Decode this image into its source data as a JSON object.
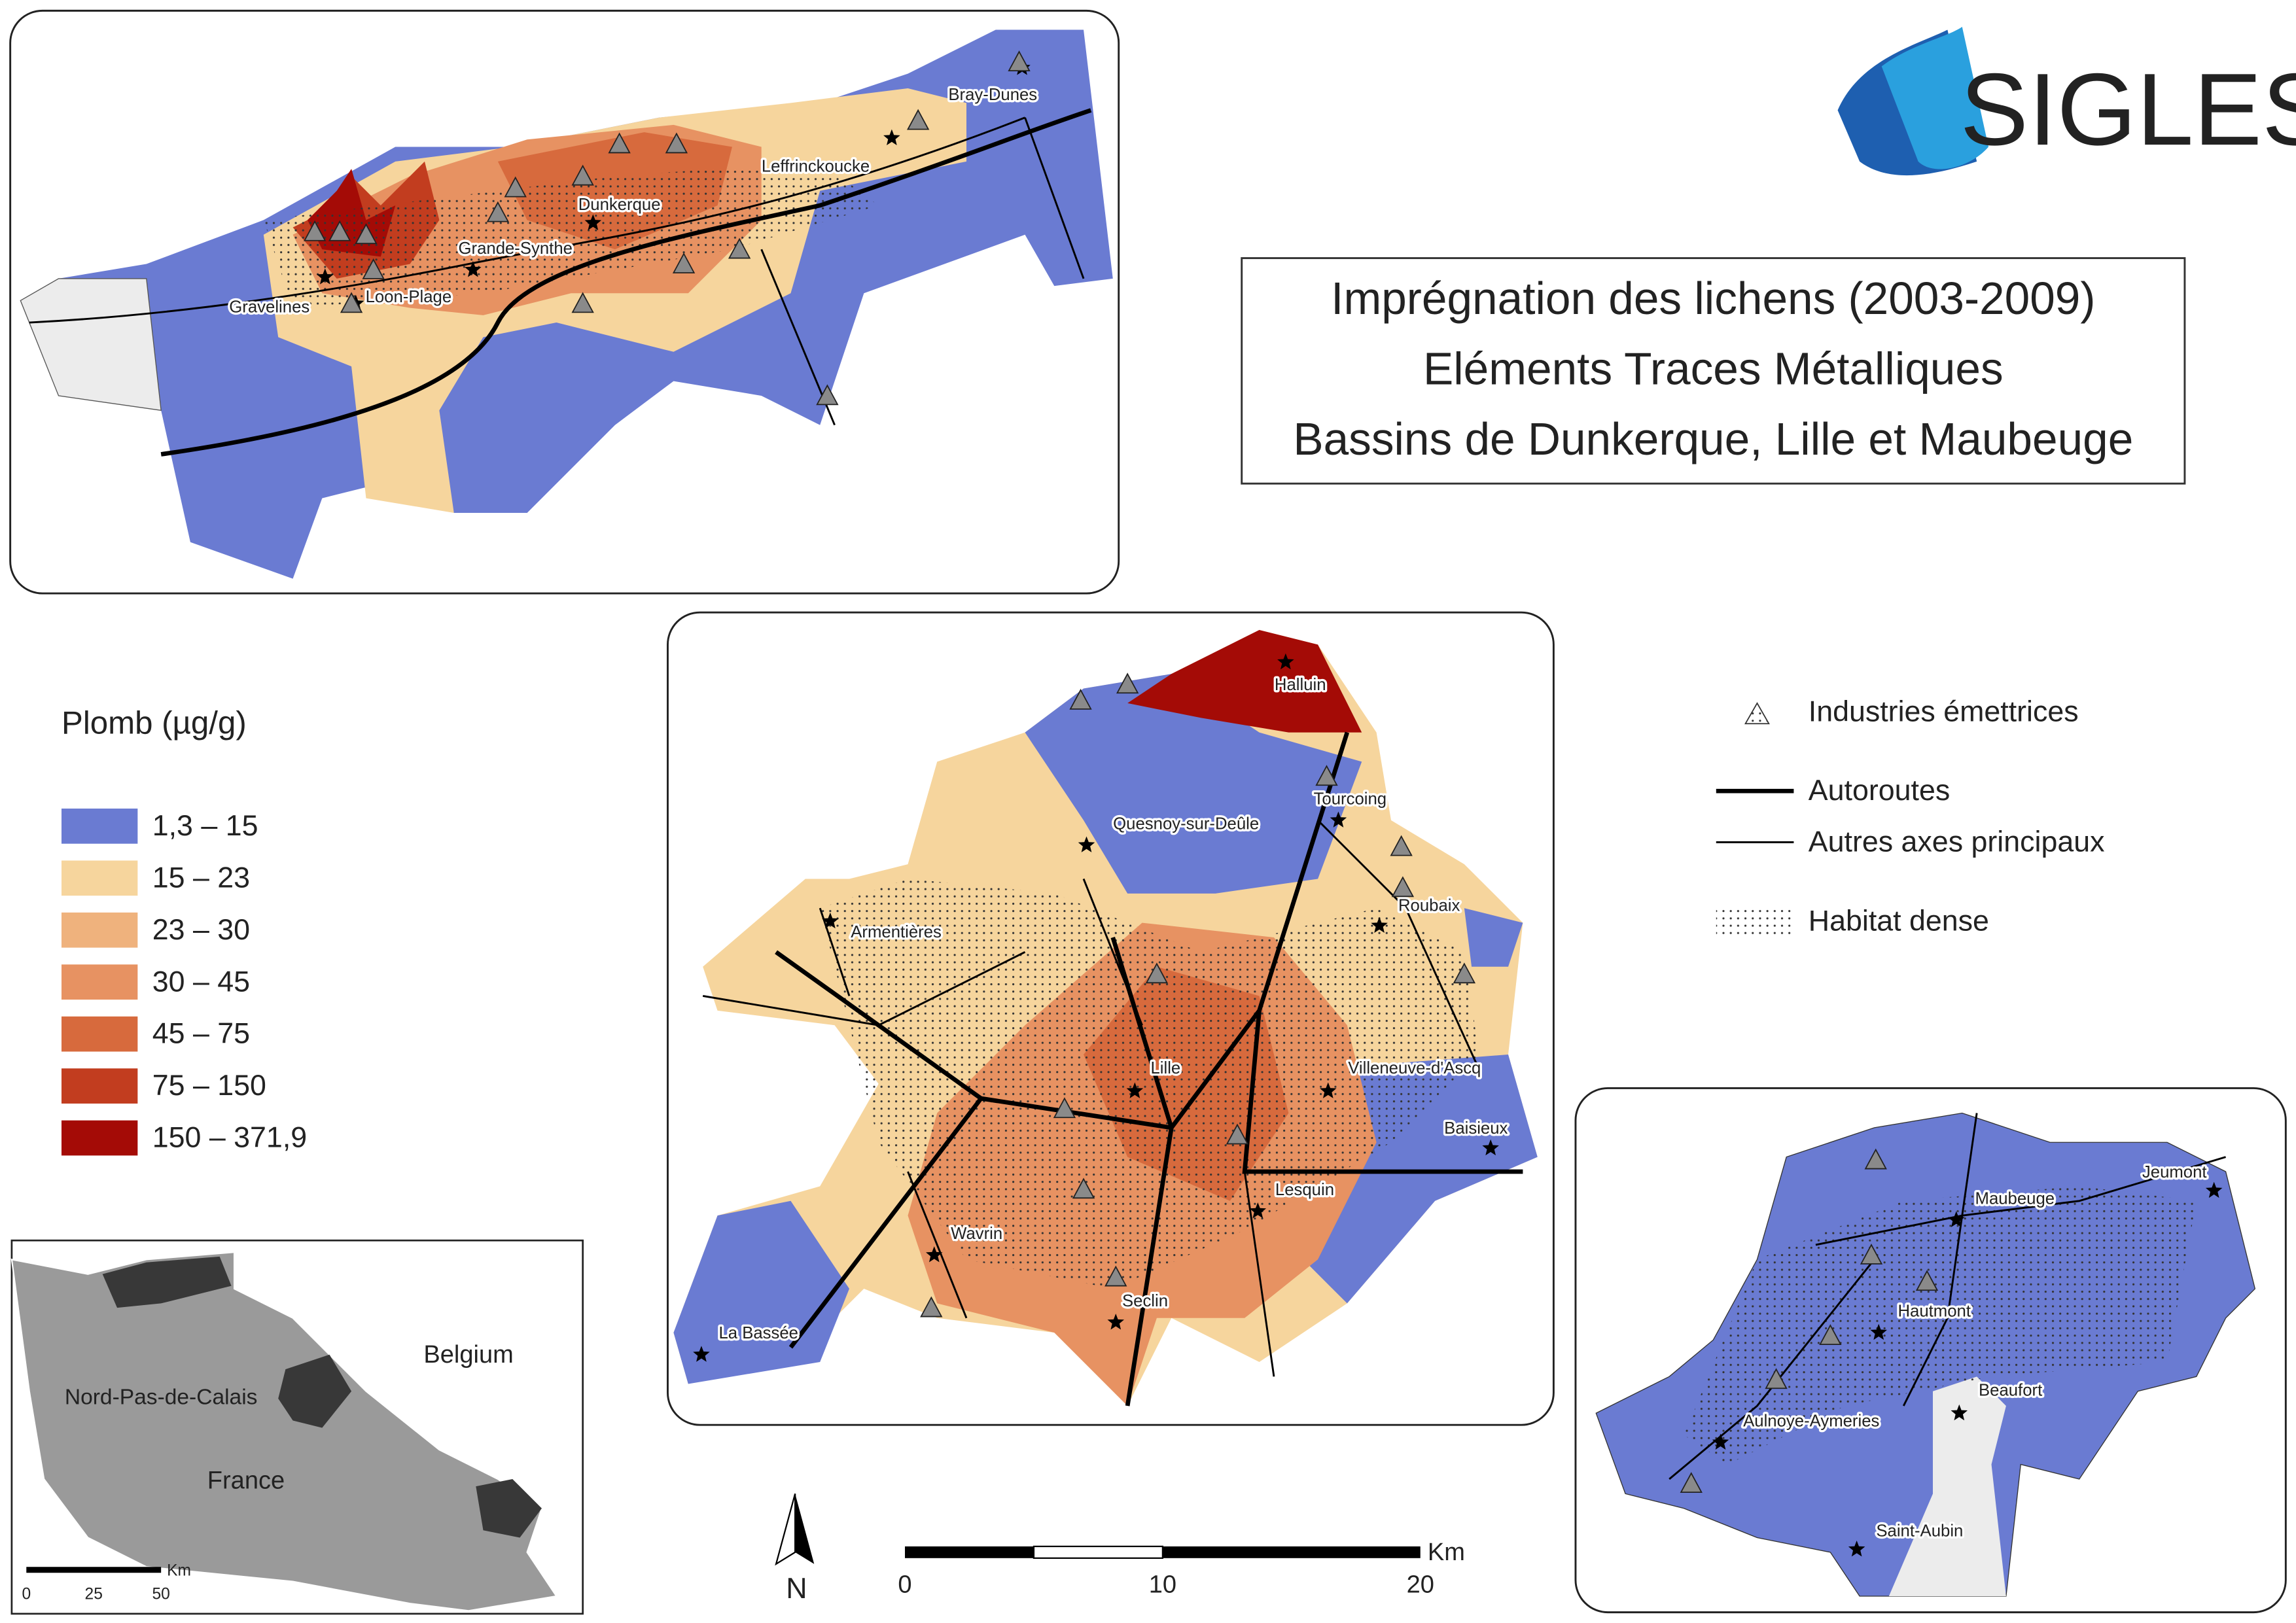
{
  "logo": "SIGLES",
  "title": [
    "Imprégnation des lichens (2003-2009)",
    "Eléments Traces Métalliques",
    "Bassins de Dunkerque, Lille et Maubeuge"
  ],
  "legend": {
    "title": "Plomb (µg/g)",
    "classes": [
      {
        "label": "1,3 – 15",
        "color": "#6a7bd2"
      },
      {
        "label": "15 – 23",
        "color": "#f6d59d"
      },
      {
        "label": "23 – 30",
        "color": "#efb27d"
      },
      {
        "label": "30 – 45",
        "color": "#e79262"
      },
      {
        "label": "45 – 75",
        "color": "#d76a3d"
      },
      {
        "label": "75 – 150",
        "color": "#c23d1f"
      },
      {
        "label": "150 – 371,9",
        "color": "#a40b06"
      }
    ]
  },
  "symbols": {
    "industries": "Industries émettrices",
    "autoroutes": "Autoroutes",
    "axes": "Autres axes principaux",
    "habitat": "Habitat dense"
  },
  "maps": {
    "dunkerque": {
      "places": [
        "Bray-Dunes",
        "Leffrinckoucke",
        "Dunkerque",
        "Grande-Synthe",
        "Gravelines",
        "Loon-Plage"
      ]
    },
    "lille": {
      "places": [
        "Halluin",
        "Tourcoing",
        "Quesnoy-sur-Deûle",
        "Roubaix",
        "Armentières",
        "Villeneuve-d'Ascq",
        "Lille",
        "Baisieux",
        "Lesquin",
        "Wavrin",
        "Seclin",
        "La Bassée"
      ]
    },
    "maubeuge": {
      "places": [
        "Jeumont",
        "Maubeuge",
        "Hautmont",
        "Beaufort",
        "Aulnoye-Aymeries",
        "Saint-Aubin"
      ]
    }
  },
  "inset": {
    "labels": [
      "Belgium",
      "Nord-Pas-de-Calais",
      "France"
    ],
    "scale": {
      "ticks": [
        0,
        25,
        50
      ],
      "unit": "Km"
    }
  },
  "scale": {
    "ticks": [
      0,
      10,
      20
    ],
    "unit": "Km"
  },
  "north": "N"
}
